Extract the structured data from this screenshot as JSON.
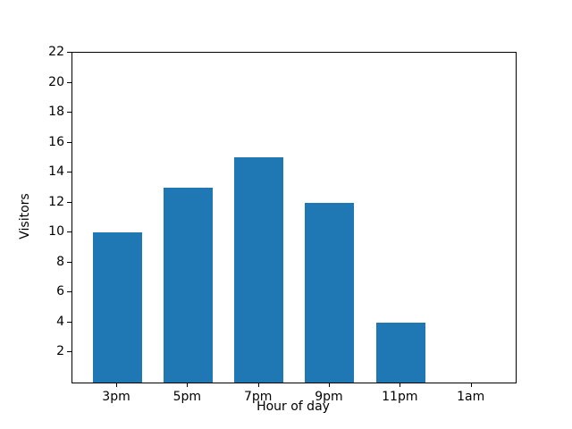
{
  "chart_data": {
    "type": "bar",
    "categories": [
      "3pm",
      "5pm",
      "7pm",
      "9pm",
      "11pm",
      "1am"
    ],
    "values": [
      10,
      13,
      15,
      12,
      4,
      0
    ],
    "title": "",
    "xlabel": "Hour of day",
    "ylabel": "Visitors",
    "ylim": [
      0,
      22
    ],
    "yticks": [
      2,
      4,
      6,
      8,
      10,
      12,
      14,
      16,
      18,
      20,
      22
    ],
    "bar_color": "#1f77b4",
    "spine_color": "#000000",
    "background_color": "#ffffff",
    "grid": false,
    "legend": "none"
  }
}
